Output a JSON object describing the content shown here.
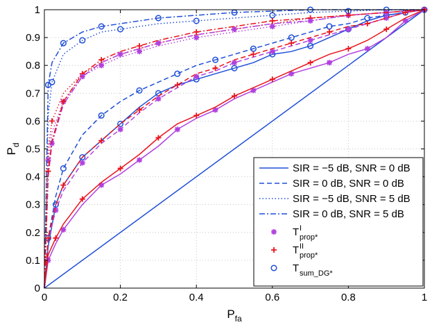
{
  "chart_data": {
    "type": "line",
    "xlabel": "P",
    "xlabel_sub": "fa",
    "ylabel": "P",
    "ylabel_sub": "d",
    "xlim": [
      0,
      1
    ],
    "ylim": [
      0,
      1
    ],
    "xticks": [
      "0",
      "0.2",
      "0.4",
      "0.6",
      "0.8",
      "1"
    ],
    "yticks": [
      "0",
      "0.1",
      "0.2",
      "0.3",
      "0.4",
      "0.5",
      "0.6",
      "0.7",
      "0.8",
      "0.9",
      "1"
    ],
    "grid": true,
    "legend_position": "bottom-right",
    "colors": {
      "blue": "#1f4fd8",
      "red": "#e8141c",
      "purple": "#b040e0"
    },
    "chance_line": {
      "x": [
        0,
        1
      ],
      "y": [
        0,
        1
      ]
    },
    "legend": [
      {
        "label": "SIR = −5 dB, SNR = 0 dB",
        "line": "solid"
      },
      {
        "label": "SIR = 0 dB, SNR = 0 dB",
        "line": "dashed"
      },
      {
        "label": "SIR = −5 dB, SNR = 5 dB",
        "line": "dotted"
      },
      {
        "label": "SIR = 0 dB, SNR = 5 dB",
        "line": "dashdot"
      },
      {
        "label": "T",
        "sup": "I",
        "sub": "prop*",
        "marker": "star"
      },
      {
        "label": "T",
        "sup": "II",
        "sub": "prop*",
        "marker": "plus"
      },
      {
        "label": "T",
        "sub": "sum_DG*",
        "marker": "circle"
      }
    ],
    "series": [
      {
        "scenario": "SIR = −5 dB, SNR = 0 dB",
        "detector": "T_sum_DG*",
        "color": "blue",
        "line": "solid",
        "x": [
          0,
          0.01,
          0.03,
          0.05,
          0.1,
          0.15,
          0.2,
          0.25,
          0.3,
          0.35,
          0.4,
          0.45,
          0.5,
          0.55,
          0.6,
          0.65,
          0.7,
          0.75,
          0.8,
          0.85,
          0.9,
          0.95,
          1
        ],
        "y": [
          0,
          0.15,
          0.3,
          0.37,
          0.47,
          0.53,
          0.59,
          0.65,
          0.7,
          0.73,
          0.75,
          0.77,
          0.79,
          0.81,
          0.84,
          0.85,
          0.87,
          0.9,
          0.93,
          0.96,
          0.98,
          0.99,
          1
        ]
      },
      {
        "scenario": "SIR = −5 dB, SNR = 0 dB",
        "detector": "T^I_prop*",
        "color": "purple",
        "line": "solid",
        "x": [
          0,
          0.01,
          0.03,
          0.05,
          0.1,
          0.15,
          0.2,
          0.25,
          0.3,
          0.35,
          0.4,
          0.45,
          0.5,
          0.55,
          0.6,
          0.65,
          0.7,
          0.75,
          0.8,
          0.85,
          0.9,
          0.95,
          1
        ],
        "y": [
          0,
          0.1,
          0.16,
          0.21,
          0.3,
          0.37,
          0.41,
          0.46,
          0.51,
          0.57,
          0.61,
          0.64,
          0.68,
          0.71,
          0.74,
          0.77,
          0.79,
          0.81,
          0.84,
          0.86,
          0.9,
          0.96,
          1
        ]
      },
      {
        "scenario": "SIR = −5 dB, SNR = 0 dB",
        "detector": "T^II_prop*",
        "color": "red",
        "line": "solid",
        "x": [
          0,
          0.01,
          0.03,
          0.05,
          0.1,
          0.15,
          0.2,
          0.25,
          0.3,
          0.35,
          0.4,
          0.45,
          0.5,
          0.55,
          0.6,
          0.65,
          0.7,
          0.75,
          0.8,
          0.85,
          0.9,
          0.95,
          1
        ],
        "y": [
          0,
          0.12,
          0.18,
          0.23,
          0.32,
          0.38,
          0.43,
          0.48,
          0.54,
          0.59,
          0.62,
          0.65,
          0.69,
          0.72,
          0.75,
          0.78,
          0.81,
          0.84,
          0.86,
          0.89,
          0.93,
          0.97,
          1
        ]
      },
      {
        "scenario": "SIR = 0 dB, SNR = 0 dB",
        "detector": "T_sum_DG*",
        "color": "blue",
        "line": "dashed",
        "x": [
          0,
          0.01,
          0.03,
          0.05,
          0.1,
          0.15,
          0.2,
          0.25,
          0.3,
          0.35,
          0.4,
          0.45,
          0.5,
          0.55,
          0.6,
          0.65,
          0.7,
          0.75,
          0.8,
          0.85,
          0.9,
          0.95,
          1
        ],
        "y": [
          0,
          0.18,
          0.33,
          0.43,
          0.55,
          0.62,
          0.67,
          0.71,
          0.74,
          0.77,
          0.8,
          0.82,
          0.84,
          0.86,
          0.88,
          0.9,
          0.92,
          0.94,
          0.95,
          0.97,
          0.98,
          0.99,
          1
        ]
      },
      {
        "scenario": "SIR = 0 dB, SNR = 0 dB",
        "detector": "T^I_prop*",
        "color": "purple",
        "line": "dashed",
        "x": [
          0,
          0.01,
          0.03,
          0.05,
          0.1,
          0.15,
          0.2,
          0.25,
          0.3,
          0.35,
          0.4,
          0.45,
          0.5,
          0.55,
          0.6,
          0.65,
          0.7,
          0.75,
          0.8,
          0.85,
          0.9,
          0.95,
          1
        ],
        "y": [
          0,
          0.17,
          0.28,
          0.35,
          0.45,
          0.52,
          0.57,
          0.63,
          0.68,
          0.72,
          0.76,
          0.78,
          0.81,
          0.83,
          0.85,
          0.87,
          0.89,
          0.91,
          0.93,
          0.95,
          0.97,
          0.99,
          1
        ]
      },
      {
        "scenario": "SIR = 0 dB, SNR = 0 dB",
        "detector": "T^II_prop*",
        "color": "red",
        "line": "dashed",
        "x": [
          0,
          0.01,
          0.03,
          0.05,
          0.1,
          0.15,
          0.2,
          0.25,
          0.3,
          0.35,
          0.4,
          0.45,
          0.5,
          0.55,
          0.6,
          0.65,
          0.7,
          0.75,
          0.8,
          0.85,
          0.9,
          0.95,
          1
        ],
        "y": [
          0,
          0.18,
          0.3,
          0.37,
          0.47,
          0.53,
          0.59,
          0.64,
          0.69,
          0.73,
          0.77,
          0.79,
          0.82,
          0.84,
          0.86,
          0.88,
          0.9,
          0.92,
          0.94,
          0.95,
          0.97,
          0.99,
          1
        ]
      },
      {
        "scenario": "SIR = −5 dB, SNR = 5 dB",
        "detector": "T_sum_DG*",
        "color": "blue",
        "line": "dotted",
        "x": [
          0,
          0.01,
          0.02,
          0.05,
          0.1,
          0.15,
          0.2,
          0.3,
          0.4,
          0.5,
          0.6,
          0.7,
          0.8,
          0.9,
          1
        ],
        "y": [
          0,
          0.62,
          0.74,
          0.84,
          0.89,
          0.92,
          0.93,
          0.95,
          0.96,
          0.97,
          0.98,
          0.99,
          0.995,
          1,
          1
        ]
      },
      {
        "scenario": "SIR = −5 dB, SNR = 5 dB",
        "detector": "T^I_prop*",
        "color": "purple",
        "line": "dotted",
        "x": [
          0,
          0.01,
          0.02,
          0.05,
          0.1,
          0.15,
          0.2,
          0.25,
          0.3,
          0.4,
          0.5,
          0.6,
          0.7,
          0.8,
          0.9,
          1
        ],
        "y": [
          0,
          0.46,
          0.56,
          0.67,
          0.76,
          0.8,
          0.83,
          0.85,
          0.87,
          0.9,
          0.92,
          0.94,
          0.96,
          0.98,
          0.99,
          1
        ]
      },
      {
        "scenario": "SIR = −5 dB, SNR = 5 dB",
        "detector": "T^II_prop*",
        "color": "red",
        "line": "dotted",
        "x": [
          0,
          0.01,
          0.02,
          0.05,
          0.1,
          0.15,
          0.2,
          0.25,
          0.3,
          0.4,
          0.5,
          0.6,
          0.7,
          0.8,
          0.9,
          1
        ],
        "y": [
          0,
          0.5,
          0.6,
          0.7,
          0.77,
          0.81,
          0.84,
          0.86,
          0.88,
          0.91,
          0.93,
          0.95,
          0.97,
          0.98,
          0.99,
          1
        ]
      },
      {
        "scenario": "SIR = 0 dB, SNR = 5 dB",
        "detector": "T_sum_DG*",
        "color": "blue",
        "line": "dashdot",
        "x": [
          0,
          0.01,
          0.02,
          0.05,
          0.1,
          0.15,
          0.2,
          0.3,
          0.4,
          0.5,
          0.6,
          0.7,
          0.8,
          0.9,
          1
        ],
        "y": [
          0,
          0.73,
          0.81,
          0.88,
          0.92,
          0.94,
          0.95,
          0.97,
          0.98,
          0.99,
          0.995,
          1,
          1,
          1,
          1
        ]
      },
      {
        "scenario": "SIR = 0 dB, SNR = 5 dB",
        "detector": "T^I_prop*",
        "color": "purple",
        "line": "dashdot",
        "x": [
          0,
          0.01,
          0.02,
          0.05,
          0.1,
          0.15,
          0.2,
          0.25,
          0.3,
          0.4,
          0.5,
          0.6,
          0.7,
          0.8,
          0.9,
          1
        ],
        "y": [
          0,
          0.4,
          0.52,
          0.66,
          0.76,
          0.81,
          0.84,
          0.86,
          0.88,
          0.91,
          0.93,
          0.95,
          0.96,
          0.98,
          0.99,
          1
        ]
      },
      {
        "scenario": "SIR = 0 dB, SNR = 5 dB",
        "detector": "T^II_prop*",
        "color": "red",
        "line": "dashdot",
        "x": [
          0,
          0.01,
          0.02,
          0.05,
          0.1,
          0.15,
          0.2,
          0.25,
          0.3,
          0.4,
          0.5,
          0.6,
          0.7,
          0.8,
          0.9,
          1
        ],
        "y": [
          0,
          0.42,
          0.53,
          0.67,
          0.77,
          0.82,
          0.85,
          0.87,
          0.89,
          0.92,
          0.94,
          0.96,
          0.97,
          0.98,
          0.99,
          1
        ]
      }
    ]
  }
}
